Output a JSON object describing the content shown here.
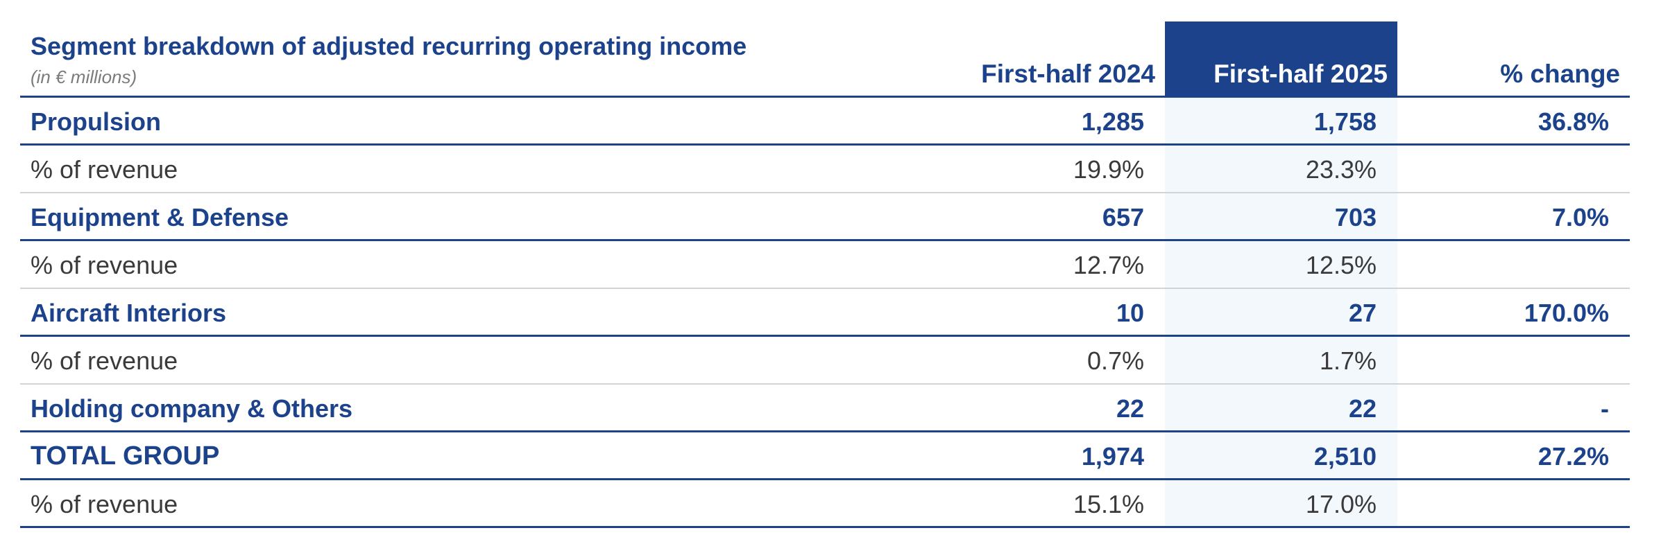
{
  "table": {
    "title": "Segment breakdown of adjusted recurring operating income",
    "subtitle": "(in € millions)",
    "columns": [
      "First-half 2024",
      "First-half 2025",
      "% change"
    ],
    "rows": [
      {
        "type": "main",
        "label": "Propulsion",
        "h1_2024": "1,285",
        "h1_2025": "1,758",
        "change": "36.8%"
      },
      {
        "type": "sub",
        "label": "% of revenue",
        "h1_2024": "19.9%",
        "h1_2025": "23.3%",
        "change": ""
      },
      {
        "type": "main",
        "label": "Equipment & Defense",
        "h1_2024": "657",
        "h1_2025": "703",
        "change": "7.0%"
      },
      {
        "type": "sub",
        "label": "% of revenue",
        "h1_2024": "12.7%",
        "h1_2025": "12.5%",
        "change": ""
      },
      {
        "type": "main",
        "label": "Aircraft Interiors",
        "h1_2024": "10",
        "h1_2025": "27",
        "change": "170.0%"
      },
      {
        "type": "sub",
        "label": "% of revenue",
        "h1_2024": "0.7%",
        "h1_2025": "1.7%",
        "change": ""
      },
      {
        "type": "main",
        "label": "Holding company & Others",
        "h1_2024": "22",
        "h1_2025": "22",
        "change": "-"
      },
      {
        "type": "main",
        "label": "TOTAL GROUP",
        "h1_2024": "1,974",
        "h1_2025": "2,510",
        "change": "27.2%"
      },
      {
        "type": "sub",
        "label": "% of revenue",
        "h1_2024": "15.1%",
        "h1_2025": "17.0%",
        "change": ""
      }
    ]
  },
  "colors": {
    "brand_blue": "#1b428a",
    "highlight_column": "#f3f8fd",
    "sub_text": "#3a3a3a",
    "divider": "#d3d3d3"
  }
}
